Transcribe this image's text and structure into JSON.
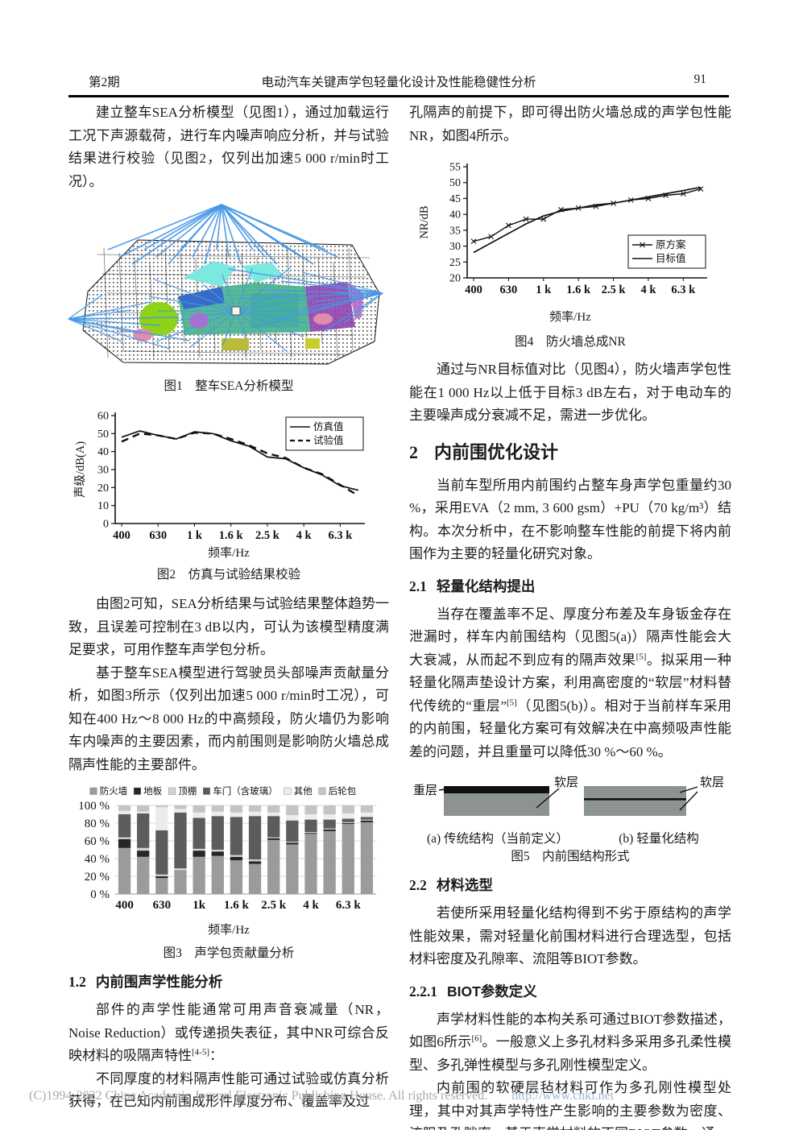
{
  "header": {
    "issue": "第2期",
    "title": "电动汽车关键声学包轻量化设计及性能稳健性分析",
    "page": "91"
  },
  "left": {
    "para1": "建立整车SEA分析模型（见图1），通过加载运行工况下声源载荷，进行车内噪声响应分析，并与试验结果进行校验（见图2，仅列出加速5 000 r/min时工况）。",
    "fig1_caption": "图1　整车SEA分析模型",
    "fig2_caption": "图2　仿真与试验结果校验",
    "para2": "由图2可知，SEA分析结果与试验结果整体趋势一致，且误差可控制在3 dB以内，可认为该模型精度满足要求，可用作整车声学包分析。",
    "para3": "基于整车SEA模型进行驾驶员头部噪声贡献量分析，如图3所示（仅列出加速5 000 r/min时工况），可知在400 Hz～8 000 Hz的中高频段，防火墙仍为影响车内噪声的主要因素，而内前围则是影响防火墙总成隔声性能的主要部件。",
    "fig3_caption": "图3　声学包贡献量分析",
    "sec12_num": "1.2",
    "sec12_title": "内前围声学性能分析",
    "para4": {
      "pre": "部件的声学性能通常可用声音衰减量（NR，Noise Reduction）或传递损失表征，其中NR可综合反映材料的吸隔声特性",
      "ref": "[4-5]",
      "post": "："
    },
    "para5": "不同厚度的材料隔声性能可通过试验或仿真分析获得，在已知内前围成形件厚度分布、覆盖率及过"
  },
  "right": {
    "para1": "孔隔声的前提下，即可得出防火墙总成的声学包性能NR，如图4所示。",
    "fig4_caption": "图4　防火墙总成NR",
    "para2": "通过与NR目标值对比（见图4），防火墙声学包性能在1 000 Hz以上低于目标3 dB左右，对于电动车的主要噪声成分衰减不足，需进一步优化。",
    "sec2_num": "2",
    "sec2_title": "内前围优化设计",
    "para3": "当前车型所用内前围约占整车身声学包重量约30 %，采用EVA（2 mm, 3 600 gsm）+PU（70 kg/m³）结构。本次分析中，在不影响整车性能的前提下将内前围作为主要的轻量化研究对象。",
    "sec21_num": "2.1",
    "sec21_title": "轻量化结构提出",
    "para4": {
      "pre": "当存在覆盖率不足、厚度分布差及车身钣金存在泄漏时，样车内前围结构（见图5(a)）隔声性能会大大衰减，从而起不到应有的隔声效果",
      "ref1": "[5]",
      "mid": "。拟采用一种轻量化隔声垫设计方案，利用高密度的“软层”材料替代传统的“重层”",
      "ref2": "[5]",
      "post": "（见图5(b)）。相对于当前样车采用的内前围，轻量化方案可有效解决在中高频吸声性能差的问题，并且重量可以降低30 %～60 %。"
    },
    "fig5": {
      "label_heavy": "重层",
      "label_soft_a": "软层",
      "label_soft_b": "软层",
      "caption_a": "(a) 传统结构（当前定义）",
      "caption_b": "(b) 轻量化结构",
      "caption": "图5　内前围结构形式",
      "layer_gray": "#8d9292",
      "layer_black": "#101010"
    },
    "sec22_num": "2.2",
    "sec22_title": "材料选型",
    "para5": "若使所采用轻量化结构得到不劣于原结构的声学性能效果，需对轻量化前围材料进行合理选型，包括材料密度及孔隙率、流阻等BIOT参数。",
    "sec221_num": "2.2.1",
    "sec221_title": "BIOT参数定义",
    "para6": {
      "pre": "声学材料性能的本构关系可通过BIOT参数描述，如图6所示",
      "ref": "[6]",
      "post": "。一般意义上多孔材料多采用多孔柔性模型、多孔弹性模型与多孔刚性模型定义。"
    },
    "para7": "内前围的软硬层毡材料可作为多孔刚性模型处理，其中对其声学特性产生影响的主要参数为密度、流阻及孔隙率。基于声学材料的不同BIOT参数，通"
  },
  "footer": {
    "copyright": "(C)1994-2022 China Academic Journal Electronic Publishing House. All rights reserved.",
    "url": "http://www.cnki.net"
  },
  "chart_data": [
    {
      "figure": "图2",
      "type": "line",
      "title": "仿真与试验结果校验",
      "xlabel": "频率/Hz",
      "ylabel": "声级/dB(A)",
      "categories": [
        "400",
        "500",
        "630",
        "800",
        "1 k",
        "1.25 k",
        "1.6 k",
        "2 k",
        "2.5 k",
        "3.15 k",
        "4 k",
        "5 k",
        "6.3 k",
        "8 k"
      ],
      "x_tick_labels": [
        "400",
        "630",
        "1 k",
        "1.6 k",
        "2.5 k",
        "4 k",
        "6.3 k"
      ],
      "ylim": [
        0,
        60
      ],
      "ystep": 10,
      "grid": false,
      "legend_position": "top-right",
      "series": [
        {
          "name": "仿真值",
          "style": "solid",
          "values": [
            48,
            51.5,
            49,
            47,
            51,
            50,
            46,
            43,
            37,
            36,
            31,
            27,
            21,
            18.5
          ]
        },
        {
          "name": "试验值",
          "style": "dashed",
          "values": [
            45.5,
            50,
            49,
            47,
            50.5,
            50,
            47,
            43.5,
            39,
            36.5,
            31,
            27.5,
            21.5,
            15.5
          ]
        }
      ]
    },
    {
      "figure": "图3",
      "type": "stacked-bar",
      "title": "声学包贡献量分析",
      "xlabel": "频率/Hz",
      "unit": "%",
      "categories": [
        "400",
        "500",
        "630",
        "800",
        "1 k",
        "1.25 k",
        "1.6 k",
        "2 k",
        "2.5 k",
        "3.15 k",
        "4 k",
        "5 k",
        "6.3 k",
        "8 k"
      ],
      "x_tick_labels": [
        "400",
        "630",
        "1k",
        "1.6 k",
        "2.5 k",
        "4 k",
        "6.3 k"
      ],
      "ylim": [
        0,
        100
      ],
      "ystep": 20,
      "grid": true,
      "legend_position": "top",
      "series": [
        {
          "name": "防火墙",
          "color": "#9b9b9b",
          "values": [
            52,
            42,
            18,
            27,
            42,
            43,
            38,
            34,
            61,
            56,
            68,
            71,
            79,
            81
          ]
        },
        {
          "name": "地板",
          "color": "#262626",
          "values": [
            10,
            7,
            2,
            0,
            7,
            5,
            4,
            3,
            2,
            2,
            1,
            2,
            1,
            2
          ]
        },
        {
          "name": "顶棚",
          "color": "#d2d2d2",
          "values": [
            2,
            3,
            2,
            2,
            2,
            2,
            2,
            2,
            1,
            1,
            1,
            1,
            1,
            1
          ]
        },
        {
          "name": "车门（含玻璃）",
          "color": "#5c5c5c",
          "values": [
            26,
            39,
            50,
            63,
            35,
            38,
            43,
            49,
            24,
            24,
            14,
            10,
            4,
            3
          ]
        },
        {
          "name": "其他",
          "color": "#ececec",
          "values": [
            4,
            2,
            26,
            4,
            6,
            5,
            5,
            5,
            4,
            6,
            6,
            6,
            6,
            5
          ]
        },
        {
          "name": "后轮包",
          "color": "#c4c4c4",
          "values": [
            6,
            7,
            2,
            4,
            8,
            7,
            8,
            7,
            8,
            11,
            10,
            10,
            9,
            8
          ]
        }
      ]
    },
    {
      "figure": "图4",
      "type": "line",
      "title": "防火墙总成NR",
      "xlabel": "频率/Hz",
      "ylabel": "NR/dB",
      "categories": [
        "400",
        "500",
        "630",
        "800",
        "1 k",
        "1.25 k",
        "1.6 k",
        "2 k",
        "2.5 k",
        "3.15 k",
        "4 k",
        "5 k",
        "6.3 k",
        "8 k"
      ],
      "x_tick_labels": [
        "400",
        "630",
        "1 k",
        "1.6 k",
        "2.5 k",
        "4 k",
        "6.3 k"
      ],
      "ylim": [
        20,
        55
      ],
      "ystep": 5,
      "grid": false,
      "legend_position": "bottom-right",
      "series": [
        {
          "name": "原方案",
          "style": "solid-x",
          "values": [
            31.5,
            33,
            36.5,
            38.5,
            38.5,
            41.5,
            42,
            42.5,
            43.5,
            44.5,
            45,
            46,
            46.5,
            48
          ]
        },
        {
          "name": "目标值",
          "style": "solid",
          "values": [
            28,
            31,
            34,
            37,
            39.5,
            41,
            42,
            43,
            43.5,
            44.5,
            45.5,
            46.5,
            47.5,
            48.5
          ]
        }
      ]
    }
  ]
}
